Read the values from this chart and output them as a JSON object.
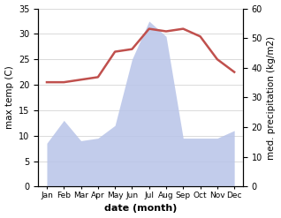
{
  "months": [
    "Jan",
    "Feb",
    "Mar",
    "Apr",
    "May",
    "Jun",
    "Jul",
    "Aug",
    "Sep",
    "Oct",
    "Nov",
    "Dec"
  ],
  "max_temp": [
    20.5,
    20.5,
    21.0,
    21.5,
    26.5,
    27.0,
    31.0,
    30.5,
    31.0,
    29.5,
    25.0,
    22.5
  ],
  "precipitation": [
    8.5,
    13.0,
    9.0,
    9.5,
    12.0,
    25.0,
    32.5,
    29.5,
    9.5,
    9.5,
    9.5,
    11.0
  ],
  "temp_ylim": [
    0,
    35
  ],
  "precip_ylim": [
    0,
    60
  ],
  "temp_color": "#c0504d",
  "precip_fill_color": "#b8c4e8",
  "xlabel": "date (month)",
  "ylabel_left": "max temp (C)",
  "ylabel_right": "med. precipitation (kg/m2)",
  "temp_yticks": [
    0,
    5,
    10,
    15,
    20,
    25,
    30,
    35
  ],
  "precip_yticks": [
    0,
    10,
    20,
    30,
    40,
    50,
    60
  ],
  "precip_scale_factor": 1.714
}
